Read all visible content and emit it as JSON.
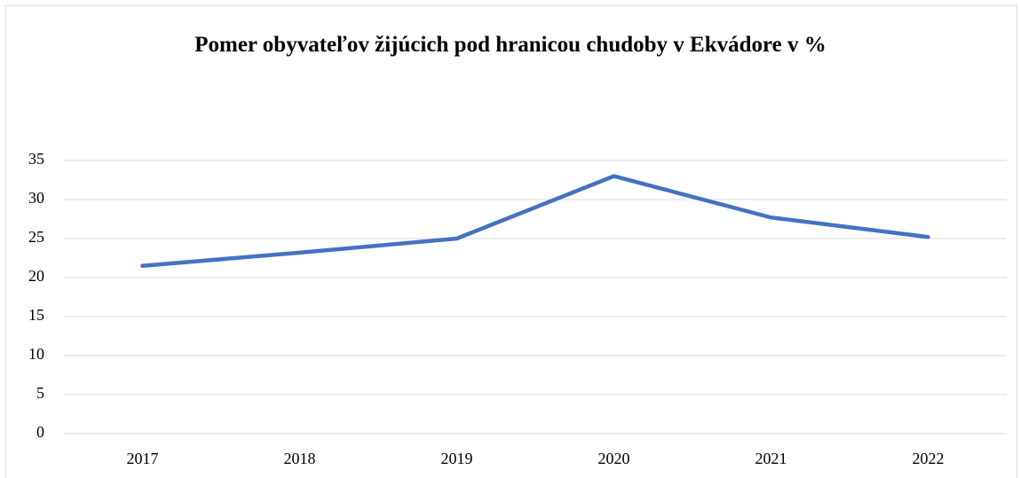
{
  "chart_data": {
    "type": "line",
    "title": "Pomer obyvateľov žijúcich pod hranicou chudoby v Ekvádore v %",
    "categories": [
      "2017",
      "2018",
      "2019",
      "2020",
      "2021",
      "2022"
    ],
    "series": [
      {
        "name": "Pomer obyvateľov žijúcich pod hranicou chudoby",
        "color": "#4472c4",
        "values": [
          21.5,
          23.2,
          25.0,
          33.0,
          27.7,
          25.2
        ]
      }
    ],
    "ylim": [
      0,
      35
    ],
    "yticks": [
      0,
      5,
      10,
      15,
      20,
      25,
      30,
      35
    ],
    "grid": true
  }
}
